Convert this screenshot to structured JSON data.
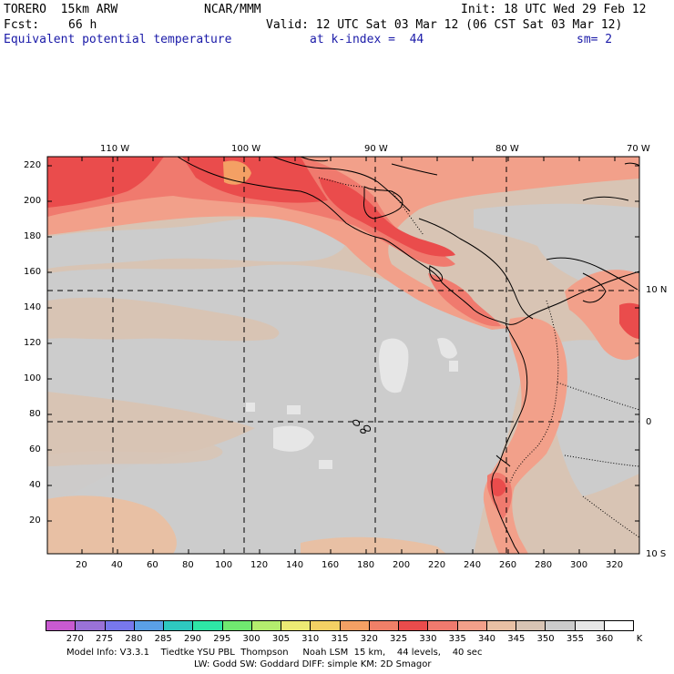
{
  "header": {
    "model": "TORERO  15km ARW",
    "org": "NCAR/MMM",
    "init": "Init: 18 UTC Wed 29 Feb 12",
    "fcst_label": "Fcst:",
    "fcst_value": "66 h",
    "valid": "Valid: 12 UTC Sat 03 Mar 12 (06 CST Sat 03 Mar 12)",
    "field": "Equivalent potential temperature",
    "level": "at k-index =  44",
    "smoothing": "sm= 2"
  },
  "map": {
    "top_longitudes": [
      "110 W",
      "100 W",
      "90 W",
      "80 W",
      "70 W"
    ],
    "right_latitudes": [
      "10 N",
      "0",
      "10 S"
    ],
    "left_y_ticks": [
      "220",
      "200",
      "180",
      "160",
      "140",
      "120",
      "100",
      "80",
      "60",
      "40",
      "20"
    ],
    "bottom_x_ticks": [
      "20",
      "40",
      "60",
      "80",
      "100",
      "120",
      "140",
      "160",
      "180",
      "200",
      "220",
      "240",
      "260",
      "280",
      "300",
      "320"
    ]
  },
  "colors": {
    "levels": [
      "#c85ad0",
      "#9a72d8",
      "#7878ec",
      "#5aa0e6",
      "#2ec8c0",
      "#2ee6a6",
      "#70e870",
      "#b4ec6e",
      "#eceb74",
      "#f4d064",
      "#f4a064",
      "#f08068",
      "#ea4c4c",
      "#f07a6e",
      "#f2a08a",
      "#e8c0a4",
      "#d8c4b4",
      "#cccccc",
      "#e6e6e6",
      "#ffffff"
    ]
  },
  "colorbar": {
    "labels": [
      "270",
      "275",
      "280",
      "285",
      "290",
      "295",
      "300",
      "305",
      "310",
      "315",
      "320",
      "325",
      "330",
      "335",
      "340",
      "345",
      "350",
      "355",
      "360"
    ],
    "unit": "K"
  },
  "footer": {
    "line1": "Model Info: V3.3.1    Tiedtke YSU PBL  Thompson     Noah LSM  15 km,    44 levels,    40 sec",
    "line2": "LW: Godd SW: Goddard DIFF: simple KM: 2D Smagor"
  }
}
